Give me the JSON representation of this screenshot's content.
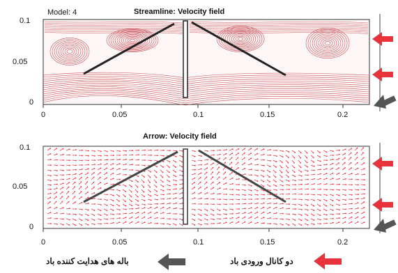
{
  "top_panel": {
    "model_label": "Model: 4",
    "title": "Streamline: Velocity field",
    "y_ticks": [
      "0.1",
      "0.05",
      "0"
    ],
    "x_ticks": [
      "0",
      "0.05",
      "0.1",
      "0.15",
      "0.2"
    ]
  },
  "bottom_panel": {
    "title": "Arrow: Velocity field",
    "y_ticks": [
      "0.1",
      "0.05",
      "0"
    ],
    "x_ticks": [
      "0",
      "0.05",
      "0.1",
      "0.15",
      "0.2"
    ]
  },
  "legend": {
    "guide_vanes": "باله های هدایت کننده باد",
    "inlet_channels": "دو کانال ورودی باد"
  },
  "colors": {
    "flow": "#c0303a",
    "arrow_red": "#e8323c",
    "arrow_gray": "#555555"
  }
}
